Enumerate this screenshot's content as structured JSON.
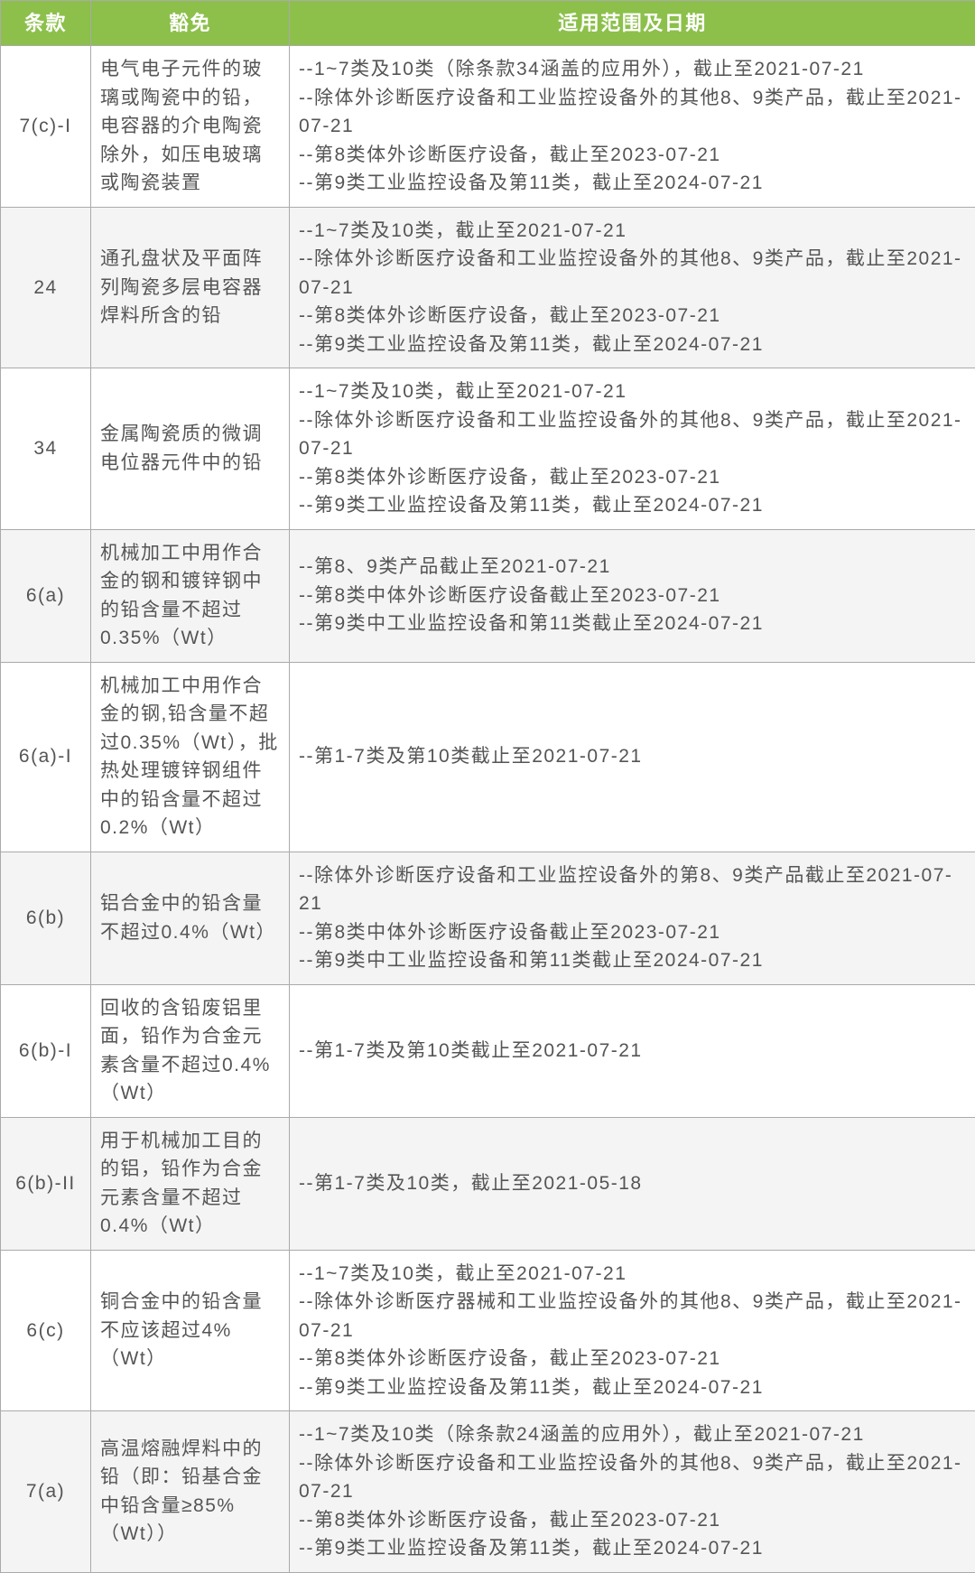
{
  "headers": {
    "clause": "条款",
    "exemption": "豁免",
    "scope": "适用范围及日期"
  },
  "rows": [
    {
      "clause": "7(c)-I",
      "exemption": "电气电子元件的玻璃或陶瓷中的铅，电容器的介电陶瓷除外，如压电玻璃或陶瓷装置",
      "scope": "--1~7类及10类（除条款34涵盖的应用外），截止至2021-07-21\n--除体外诊断医疗设备和工业监控设备外的其他8、9类产品，截止至2021-07-21\n--第8类体外诊断医疗设备，截止至2023-07-21\n--第9类工业监控设备及第11类，截止至2024-07-21"
    },
    {
      "clause": "24",
      "exemption": "通孔盘状及平面阵列陶瓷多层电容器焊料所含的铅",
      "scope": "--1~7类及10类，截止至2021-07-21\n--除体外诊断医疗设备和工业监控设备外的其他8、9类产品，截止至2021-07-21\n--第8类体外诊断医疗设备，截止至2023-07-21\n--第9类工业监控设备及第11类，截止至2024-07-21"
    },
    {
      "clause": "34",
      "exemption": "金属陶瓷质的微调电位器元件中的铅",
      "scope": "--1~7类及10类，截止至2021-07-21\n--除体外诊断医疗设备和工业监控设备外的其他8、9类产品，截止至2021-07-21\n--第8类体外诊断医疗设备，截止至2023-07-21\n--第9类工业监控设备及第11类，截止至2024-07-21"
    },
    {
      "clause": "6(a)",
      "exemption": "机械加工中用作合金的钢和镀锌钢中的铅含量不超过0.35%（Wt）",
      "scope": "--第8、9类产品截止至2021-07-21\n--第8类中体外诊断医疗设备截止至2023-07-21\n--第9类中工业监控设备和第11类截止至2024-07-21"
    },
    {
      "clause": "6(a)-I",
      "exemption": "机械加工中用作合金的钢,铅含量不超过0.35%（Wt），批热处理镀锌钢组件中的铅含量不超过0.2%（Wt）",
      "scope": "--第1-7类及第10类截止至2021-07-21"
    },
    {
      "clause": "6(b)",
      "exemption": "铝合金中的铅含量不超过0.4%（Wt）",
      "scope": "--除体外诊断医疗设备和工业监控设备外的第8、9类产品截止至2021-07-21\n--第8类中体外诊断医疗设备截止至2023-07-21\n--第9类中工业监控设备和第11类截止至2024-07-21"
    },
    {
      "clause": "6(b)-I",
      "exemption": "回收的含铅废铝里面，铅作为合金元素含量不超过0.4%（Wt）",
      "scope": "--第1-7类及第10类截止至2021-07-21"
    },
    {
      "clause": "6(b)-II",
      "exemption": "用于机械加工目的的铝，铅作为合金元素含量不超过0.4%（Wt）",
      "scope": "--第1-7类及10类，截止至2021-05-18"
    },
    {
      "clause": "6(c)",
      "exemption": "铜合金中的铅含量不应该超过4%（Wt）",
      "scope": "--1~7类及10类，截止至2021-07-21\n--除体外诊断医疗器械和工业监控设备外的其他8、9类产品，截止至2021-07-21\n--第8类体外诊断医疗设备，截止至2023-07-21\n--第9类工业监控设备及第11类，截止至2024-07-21"
    },
    {
      "clause": "7(a)",
      "exemption": "高温熔融焊料中的铅（即：铅基合金中铅含量≥85%（Wt））",
      "scope": "--1~7类及10类（除条款24涵盖的应用外），截止至2021-07-21\n--除体外诊断医疗设备和工业监控设备外的其他8、9类产品，截止至2021-07-21\n--第8类体外诊断医疗设备，截止至2023-07-21\n--第9类工业监控设备及第11类，截止至2024-07-21"
    }
  ],
  "style": {
    "header_bg": "#8cc04b",
    "header_fg": "#ffffff",
    "border_color": "#aaaaaa",
    "text_color": "#555555",
    "even_row_bg": "#f4f4f4",
    "font_size_body": 21,
    "font_size_header": 22
  }
}
